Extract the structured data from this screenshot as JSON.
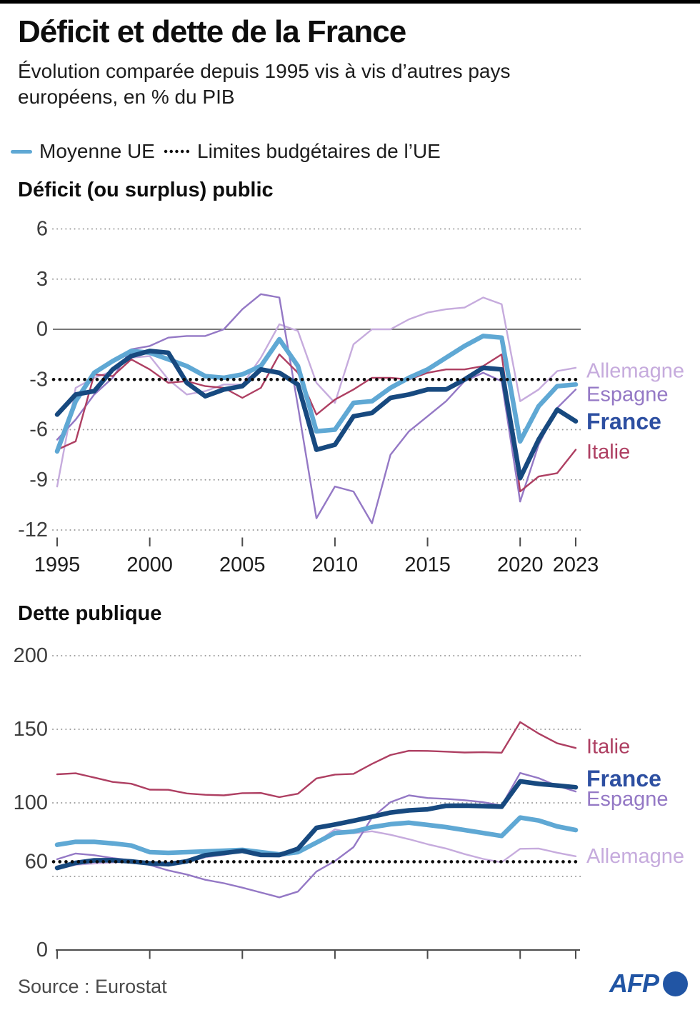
{
  "header": {
    "title": "Déficit et dette de la France",
    "subtitle": "Évolution comparée depuis 1995 vis à vis d’autres pays européens, en % du PIB"
  },
  "legend": {
    "eu_label": "Moyenne UE",
    "limit_label": "Limites budgétaires de l’UE"
  },
  "footer": {
    "source": "Source : Eurostat",
    "logo_text": "AFP"
  },
  "colors": {
    "france": "#17497f",
    "france_label": "#2d4fa1",
    "moyenne_ue": "#5fa8d4",
    "allemagne": "#c6abdd",
    "espagne": "#9478c5",
    "italie": "#ae3f62",
    "limit": "#0c0c0c",
    "grid": "#9b9b9b",
    "axis": "#4c4c4c",
    "tick_label": "#3d3d3d",
    "x_label": "#1d1d1d"
  },
  "chart_data": [
    {
      "type": "line",
      "title": "Déficit (ou surplus) public",
      "x": [
        1995,
        1996,
        1997,
        1998,
        1999,
        2000,
        2001,
        2002,
        2003,
        2004,
        2005,
        2006,
        2007,
        2008,
        2009,
        2010,
        2011,
        2012,
        2013,
        2014,
        2015,
        2016,
        2017,
        2018,
        2019,
        2020,
        2021,
        2022,
        2023
      ],
      "ylim": [
        -12,
        6
      ],
      "yticks": [
        {
          "v": 6,
          "label": "6"
        },
        {
          "v": 3,
          "label": "3"
        },
        {
          "v": 0,
          "label": "0"
        },
        {
          "v": -3,
          "label": "-3"
        },
        {
          "v": -6,
          "label": "-6"
        },
        {
          "v": -9,
          "label": "-9"
        },
        {
          "v": -12,
          "label": "-12"
        }
      ],
      "gridlines": [
        6,
        3,
        -6,
        -9,
        -12
      ],
      "zero_line": 0,
      "limit_line": -3,
      "xticks": [
        {
          "x": 1995,
          "label": "1995"
        },
        {
          "x": 2000,
          "label": "2000"
        },
        {
          "x": 2005,
          "label": "2005"
        },
        {
          "x": 2010,
          "label": "2010"
        },
        {
          "x": 2015,
          "label": "2015"
        },
        {
          "x": 2020,
          "label": "2020"
        },
        {
          "x": 2023,
          "label": "2023"
        }
      ],
      "show_x_labels": true,
      "series": [
        {
          "name": "Allemagne",
          "key": "allemagne",
          "stroke_width": 2.4,
          "values": [
            -9.4,
            -3.5,
            -2.9,
            -2.5,
            -1.7,
            -1.6,
            -3.0,
            -3.9,
            -3.7,
            -3.3,
            -3.3,
            -1.7,
            0.3,
            -0.1,
            -3.2,
            -4.4,
            -0.9,
            0.0,
            0.0,
            0.6,
            1.0,
            1.2,
            1.3,
            1.9,
            1.5,
            -4.3,
            -3.6,
            -2.5,
            -2.3
          ]
        },
        {
          "name": "Espagne",
          "key": "espagne",
          "stroke_width": 2.4,
          "values": [
            -6.6,
            -5.4,
            -3.9,
            -2.9,
            -1.2,
            -1.0,
            -0.5,
            -0.4,
            -0.4,
            0.0,
            1.2,
            2.1,
            1.9,
            -4.6,
            -11.3,
            -9.4,
            -9.7,
            -11.6,
            -7.5,
            -6.1,
            -5.2,
            -4.3,
            -3.1,
            -2.6,
            -3.1,
            -10.3,
            -6.9,
            -4.7,
            -3.6
          ]
        },
        {
          "name": "Italie",
          "key": "italie",
          "stroke_width": 2.4,
          "values": [
            -7.2,
            -6.7,
            -2.7,
            -2.8,
            -1.8,
            -2.4,
            -3.2,
            -3.1,
            -3.4,
            -3.5,
            -4.1,
            -3.5,
            -1.5,
            -2.6,
            -5.1,
            -4.2,
            -3.6,
            -2.9,
            -2.9,
            -3.0,
            -2.6,
            -2.4,
            -2.4,
            -2.2,
            -1.5,
            -9.7,
            -8.8,
            -8.6,
            -7.2
          ]
        },
        {
          "name": "Moyenne UE",
          "key": "moyenne_ue",
          "stroke_width": 6.5,
          "values": [
            -7.3,
            -4.3,
            -2.6,
            -1.9,
            -1.3,
            -1.4,
            -1.8,
            -2.2,
            -2.8,
            -2.9,
            -2.7,
            -2.2,
            -0.6,
            -2.2,
            -6.1,
            -6.0,
            -4.4,
            -4.3,
            -3.5,
            -2.9,
            -2.4,
            -1.7,
            -1.0,
            -0.4,
            -0.5,
            -6.7,
            -4.6,
            -3.4,
            -3.3
          ]
        },
        {
          "name": "France",
          "key": "france",
          "stroke_width": 6.5,
          "values": [
            -5.1,
            -3.9,
            -3.7,
            -2.4,
            -1.6,
            -1.3,
            -1.4,
            -3.2,
            -4.0,
            -3.6,
            -3.4,
            -2.4,
            -2.6,
            -3.3,
            -7.2,
            -6.9,
            -5.2,
            -5.0,
            -4.1,
            -3.9,
            -3.6,
            -3.6,
            -3.0,
            -2.3,
            -2.4,
            -8.9,
            -6.6,
            -4.8,
            -5.5
          ]
        }
      ],
      "right_labels": [
        {
          "text": "Allemagne",
          "key": "allemagne",
          "at": -2.5,
          "bold": false
        },
        {
          "text": "Espagne",
          "key": "espagne",
          "at": -3.9,
          "bold": false
        },
        {
          "text": "France",
          "key": "france",
          "at": -5.5,
          "bold": true
        },
        {
          "text": "Italie",
          "key": "italie",
          "at": -7.35,
          "bold": false
        }
      ]
    },
    {
      "type": "line",
      "title": "Dette publique",
      "x": [
        1995,
        1996,
        1997,
        1998,
        1999,
        2000,
        2001,
        2002,
        2003,
        2004,
        2005,
        2006,
        2007,
        2008,
        2009,
        2010,
        2011,
        2012,
        2013,
        2014,
        2015,
        2016,
        2017,
        2018,
        2019,
        2020,
        2021,
        2022,
        2023
      ],
      "ylim": [
        0,
        200
      ],
      "yticks": [
        {
          "v": 200,
          "label": "200"
        },
        {
          "v": 150,
          "label": "150"
        },
        {
          "v": 100,
          "label": "100"
        },
        {
          "v": 60,
          "label": "60"
        },
        {
          "v": 0,
          "label": "0"
        }
      ],
      "gridlines": [
        200,
        150,
        100,
        50
      ],
      "axis_line": 0,
      "limit_line": 60,
      "xticks": [
        {
          "x": 1995,
          "label": "1995"
        },
        {
          "x": 2000,
          "label": "2000"
        },
        {
          "x": 2005,
          "label": "2005"
        },
        {
          "x": 2010,
          "label": "2010"
        },
        {
          "x": 2015,
          "label": "2015"
        },
        {
          "x": 2020,
          "label": "2020"
        },
        {
          "x": 2023,
          "label": "2023"
        }
      ],
      "show_x_labels": false,
      "series": [
        {
          "name": "Allemagne",
          "key": "allemagne",
          "stroke_width": 2.4,
          "values": [
            54.9,
            57.9,
            58.8,
            59.4,
            60.0,
            59.0,
            57.9,
            59.5,
            63.0,
            64.6,
            67.0,
            66.4,
            63.7,
            65.7,
            73.2,
            82.0,
            79.4,
            80.7,
            78.3,
            75.3,
            71.9,
            69.0,
            65.2,
            61.9,
            59.6,
            68.8,
            69.0,
            66.1,
            63.7
          ]
        },
        {
          "name": "Espagne",
          "key": "espagne",
          "stroke_width": 2.4,
          "values": [
            61.7,
            65.6,
            64.4,
            62.5,
            60.9,
            57.8,
            54.1,
            51.3,
            47.7,
            45.4,
            42.4,
            39.1,
            35.8,
            39.7,
            53.3,
            60.5,
            69.9,
            90.0,
            100.5,
            105.1,
            103.3,
            102.7,
            101.8,
            100.5,
            98.2,
            120.3,
            116.8,
            111.6,
            107.7
          ]
        },
        {
          "name": "Italie",
          "key": "italie",
          "stroke_width": 2.4,
          "values": [
            119.4,
            120.1,
            117.2,
            114.2,
            113.0,
            109.0,
            108.9,
            106.4,
            105.5,
            105.1,
            106.6,
            106.7,
            103.9,
            106.2,
            116.6,
            119.2,
            119.7,
            126.5,
            132.5,
            135.4,
            135.3,
            134.8,
            134.2,
            134.4,
            134.1,
            154.9,
            147.1,
            140.5,
            137.3
          ]
        },
        {
          "name": "Moyenne UE",
          "key": "moyenne_ue",
          "stroke_width": 6.5,
          "values": [
            71.5,
            73.5,
            73.5,
            72.5,
            71.0,
            66.5,
            66.0,
            66.5,
            67.0,
            67.5,
            68.0,
            66.5,
            65.0,
            66.5,
            73.0,
            79.5,
            80.5,
            83.5,
            85.5,
            86.5,
            85.0,
            83.5,
            81.5,
            79.5,
            77.5,
            90.0,
            88.0,
            84.0,
            81.5
          ]
        },
        {
          "name": "France",
          "key": "france",
          "stroke_width": 6.5,
          "values": [
            55.8,
            59.2,
            60.9,
            61.0,
            60.2,
            58.9,
            58.3,
            60.3,
            64.4,
            65.9,
            67.4,
            64.6,
            64.5,
            68.8,
            83.0,
            85.3,
            87.8,
            90.6,
            93.4,
            94.9,
            95.6,
            98.0,
            98.1,
            97.8,
            97.4,
            114.6,
            112.9,
            111.8,
            110.6
          ]
        }
      ],
      "right_labels": [
        {
          "text": "Italie",
          "key": "italie",
          "at": 138.0,
          "bold": false
        },
        {
          "text": "France",
          "key": "france",
          "at": 116.5,
          "bold": true
        },
        {
          "text": "Espagne",
          "key": "espagne",
          "at": 102.5,
          "bold": false
        },
        {
          "text": "Allemagne",
          "key": "allemagne",
          "at": 63.5,
          "bold": false
        }
      ]
    }
  ]
}
